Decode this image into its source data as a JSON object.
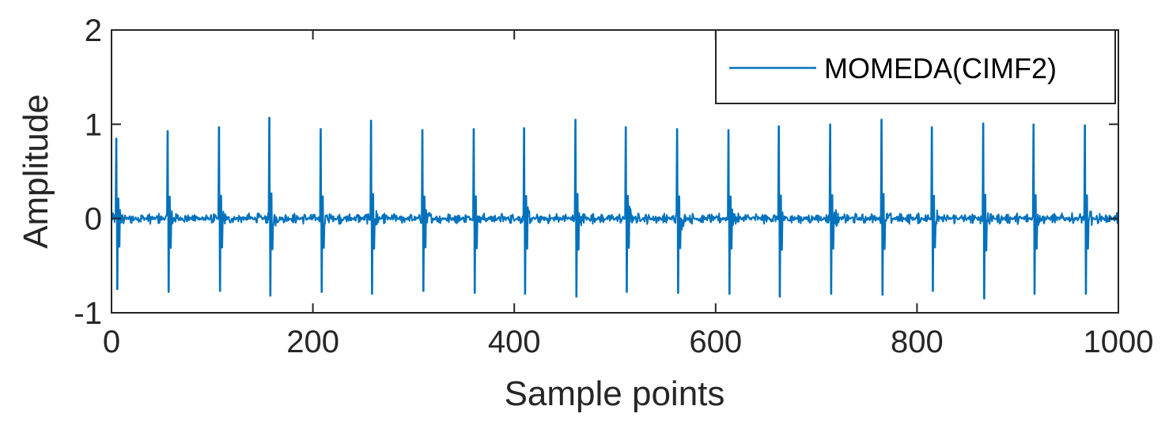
{
  "chart_data": {
    "type": "line",
    "title": "",
    "xlabel": "Sample points",
    "ylabel": "Amplitude",
    "xlim": [
      0,
      1000
    ],
    "ylim": [
      -1,
      2
    ],
    "x_ticks": [
      "0",
      "200",
      "400",
      "600",
      "800",
      "1000"
    ],
    "y_ticks": [
      "-1",
      "0",
      "1",
      "2"
    ],
    "x_tick_values": [
      0,
      200,
      400,
      600,
      800,
      1000
    ],
    "y_tick_values": [
      -1,
      0,
      1,
      2
    ],
    "grid": false,
    "legend_position": "top-right",
    "series": [
      {
        "name": "MOMEDA(CIMF2)",
        "color": "#0072BD",
        "baseline_noise_amplitude": 0.06,
        "impulses": [
          {
            "x": 5,
            "peak": 0.85,
            "trough": -0.75
          },
          {
            "x": 56,
            "peak": 0.93,
            "trough": -0.78
          },
          {
            "x": 107,
            "peak": 0.97,
            "trough": -0.77
          },
          {
            "x": 157,
            "peak": 1.07,
            "trough": -0.82
          },
          {
            "x": 208,
            "peak": 0.95,
            "trough": -0.78
          },
          {
            "x": 258,
            "peak": 1.04,
            "trough": -0.8
          },
          {
            "x": 309,
            "peak": 0.94,
            "trough": -0.77
          },
          {
            "x": 360,
            "peak": 0.95,
            "trough": -0.79
          },
          {
            "x": 410,
            "peak": 0.96,
            "trough": -0.8
          },
          {
            "x": 461,
            "peak": 1.05,
            "trough": -0.83
          },
          {
            "x": 511,
            "peak": 0.97,
            "trough": -0.78
          },
          {
            "x": 562,
            "peak": 0.95,
            "trough": -0.79
          },
          {
            "x": 613,
            "peak": 0.94,
            "trough": -0.8
          },
          {
            "x": 663,
            "peak": 0.98,
            "trough": -0.83
          },
          {
            "x": 714,
            "peak": 1.0,
            "trough": -0.8
          },
          {
            "x": 765,
            "peak": 1.05,
            "trough": -0.81
          },
          {
            "x": 815,
            "peak": 0.97,
            "trough": -0.77
          },
          {
            "x": 866,
            "peak": 1.01,
            "trough": -0.85
          },
          {
            "x": 916,
            "peak": 1.0,
            "trough": -0.8
          },
          {
            "x": 967,
            "peak": 0.99,
            "trough": -0.8
          }
        ]
      }
    ]
  }
}
